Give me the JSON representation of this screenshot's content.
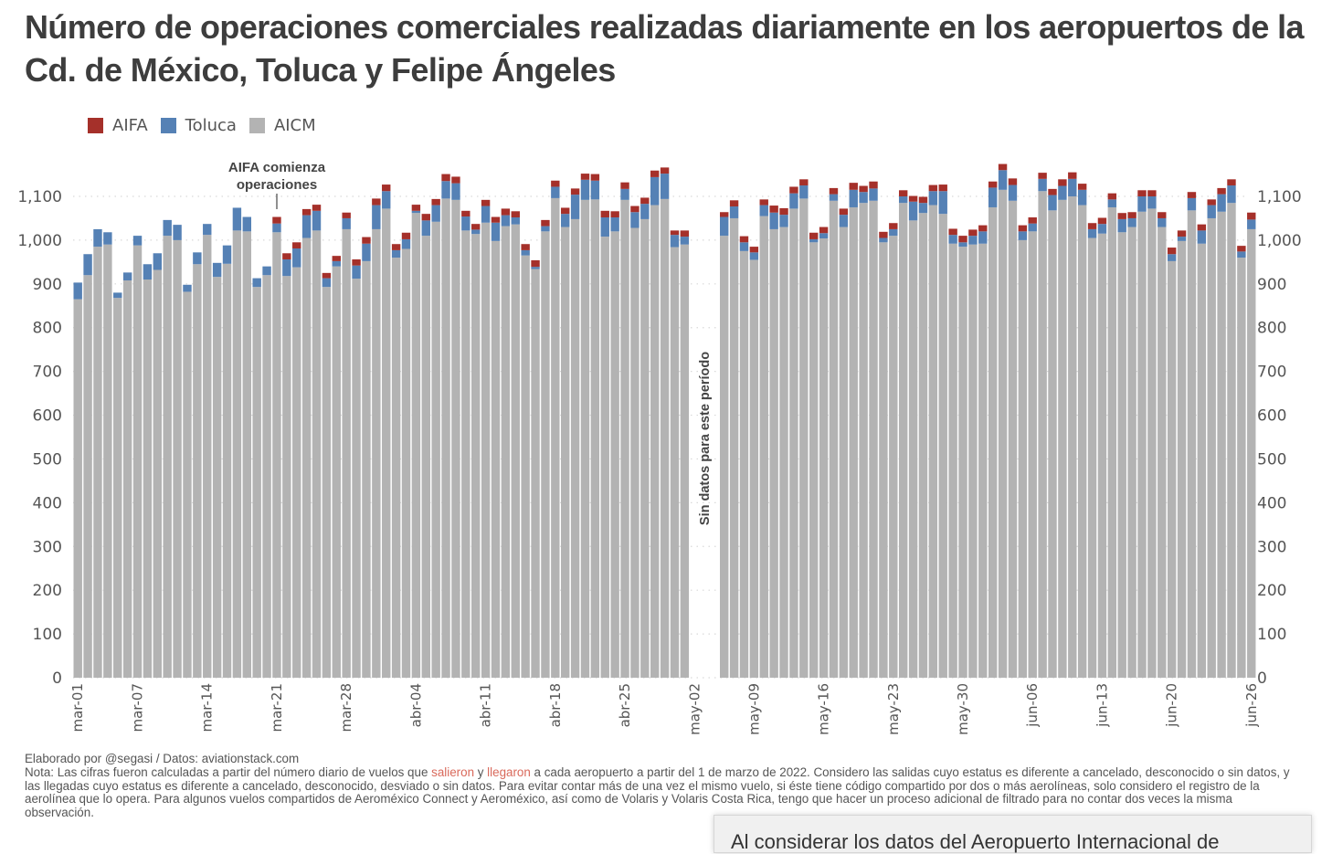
{
  "title": "Número de operaciones comerciales realizadas diariamente en los aeropuertos de la Cd. de México, Toluca y Felipe Ángeles",
  "legend": [
    {
      "label": "AIFA",
      "color": "#a5302a"
    },
    {
      "label": "Toluca",
      "color": "#5581b5"
    },
    {
      "label": "AICM",
      "color": "#b3b3b3"
    }
  ],
  "annotations": {
    "aifa_start": "AIFA comienza operaciones",
    "no_data": "Sin datos para este período"
  },
  "footer": {
    "credit": "Elaborado por @segasi / Datos: aviationstack.com",
    "note_prefix": "Nota: Las cifras fueron calculadas a partir del número diario de vuelos que ",
    "note_link1": "salieron",
    "note_mid": " y ",
    "note_link2": "llegaron",
    "note_rest": " a cada aeropuerto a partir del 1 de marzo de 2022. Considero las salidas cuyo estatus es diferente a cancelado, desconocido o sin datos, y las llegadas cuyo estatus es diferente a cancelado, desconocido, desviado o sin datos. Para evitar contar más de una vez el mismo vuelo, si éste tiene código compartido por dos o más aerolíneas, solo considero el registro de la aerolínea que lo opera. Para algunos vuelos compartidos de Aeroméxico Connect y Aeroméxico, así como de Volaris y Volaris Costa Rica, tengo que hacer un proceso adicional de filtrado para no contar dos veces la misma observación."
  },
  "popup": {
    "text": "Al considerar los datos del Aeropuerto Internacional de"
  },
  "chart_data": {
    "type": "bar",
    "stacked": true,
    "title": "Número de operaciones comerciales realizadas diariamente en los aeropuertos de la Cd. de México, Toluca y Felipe Ángeles",
    "xlabel": "",
    "ylabel": "",
    "ylim": [
      0,
      1100
    ],
    "yticks": [
      0,
      100,
      200,
      300,
      400,
      500,
      600,
      700,
      800,
      900,
      1000,
      1100
    ],
    "ytick_labels": [
      "0",
      "100",
      "200",
      "300",
      "400",
      "500",
      "600",
      "700",
      "800",
      "900",
      "1,000",
      "1,100"
    ],
    "grid": true,
    "legend_position": "top-left",
    "x_tick_labels": [
      "mar-01",
      "mar-07",
      "mar-14",
      "mar-21",
      "mar-28",
      "abr-04",
      "abr-11",
      "abr-18",
      "abr-25",
      "may-02",
      "may-09",
      "may-16",
      "may-23",
      "may-30",
      "jun-06",
      "jun-13",
      "jun-20",
      "jun-26"
    ],
    "gap": {
      "from": "may-02",
      "to": "may-05",
      "label": "Sin datos para este período"
    },
    "series_order": [
      "AICM",
      "Toluca",
      "AIFA"
    ],
    "segments": [
      {
        "start": "mar-01",
        "AICM": [
          865,
          920,
          985,
          990,
          868,
          908,
          988,
          910,
          932,
          1010,
          1000,
          882,
          945,
          1012,
          916,
          946,
          1022,
          1020,
          893,
          920,
          1018,
          918,
          938,
          1005,
          1022,
          893,
          940,
          1025,
          912,
          952,
          1025,
          1072,
          960,
          980,
          1062,
          1010,
          1042,
          1095,
          1092,
          1022,
          1014,
          1040,
          998,
          1032,
          1036,
          965,
          934,
          1020,
          1096,
          1030,
          1048,
          1092,
          1093,
          1008,
          1020,
          1092,
          1028,
          1048,
          1080,
          1094,
          984,
          990
        ],
        "Toluca": [
          38,
          48,
          40,
          28,
          12,
          18,
          22,
          35,
          38,
          36,
          35,
          16,
          27,
          25,
          32,
          42,
          52,
          33,
          20,
          20,
          20,
          38,
          43,
          52,
          45,
          20,
          12,
          25,
          30,
          40,
          55,
          40,
          17,
          22,
          5,
          35,
          38,
          40,
          38,
          32,
          10,
          38,
          42,
          25,
          16,
          12,
          5,
          12,
          26,
          30,
          56,
          46,
          43,
          44,
          32,
          25,
          36,
          35,
          64,
          58,
          28,
          18
        ],
        "AIFA": [
          0,
          0,
          0,
          0,
          0,
          0,
          0,
          0,
          0,
          0,
          0,
          0,
          0,
          0,
          0,
          0,
          0,
          0,
          0,
          0,
          15,
          14,
          14,
          14,
          14,
          12,
          12,
          13,
          14,
          15,
          15,
          15,
          14,
          15,
          14,
          15,
          14,
          16,
          15,
          13,
          13,
          14,
          13,
          15,
          14,
          14,
          15,
          14,
          14,
          14,
          14,
          14,
          15,
          15,
          14,
          15,
          14,
          14,
          15,
          14,
          10,
          14
        ]
      },
      {
        "start": "may-06",
        "AICM": [
          1010,
          1050,
          975,
          955,
          1055,
          1025,
          1030,
          1072,
          1095,
          995,
          1004,
          1090,
          1030,
          1075,
          1085,
          1090,
          995,
          1010,
          1085,
          1045,
          1062,
          1080,
          1060,
          992,
          985,
          990,
          992,
          1075,
          1115,
          1090,
          1000,
          1020,
          1112,
          1068,
          1092,
          1100,
          1080,
          1005,
          1015,
          1075,
          1018,
          1030,
          1065,
          1072,
          1030,
          952,
          998,
          1068,
          992,
          1050,
          1065,
          1085,
          960,
          1025
        ],
        "Toluca": [
          43,
          27,
          20,
          17,
          25,
          38,
          28,
          35,
          30,
          7,
          12,
          15,
          28,
          40,
          25,
          28,
          10,
          15,
          15,
          43,
          23,
          32,
          52,
          20,
          10,
          20,
          28,
          45,
          45,
          36,
          20,
          18,
          28,
          35,
          32,
          40,
          35,
          20,
          22,
          18,
          30,
          20,
          35,
          28,
          20,
          16,
          10,
          28,
          30,
          30,
          40,
          40,
          14,
          22
        ],
        "AIFA": [
          11,
          14,
          14,
          13,
          13,
          16,
          15,
          15,
          14,
          15,
          14,
          14,
          14,
          16,
          14,
          16,
          14,
          14,
          14,
          13,
          14,
          14,
          15,
          14,
          15,
          14,
          14,
          14,
          14,
          15,
          14,
          14,
          14,
          14,
          15,
          15,
          14,
          14,
          14,
          14,
          14,
          14,
          14,
          14,
          14,
          15,
          14,
          14,
          14,
          13,
          14,
          14,
          13,
          16
        ]
      }
    ]
  }
}
